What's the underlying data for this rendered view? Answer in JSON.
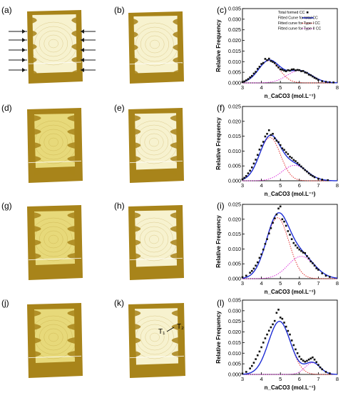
{
  "figure": {
    "panel_labels": [
      "(a)",
      "(b)",
      "(c)",
      "(d)",
      "(e)",
      "(f)",
      "(g)",
      "(h)",
      "(i)",
      "(j)",
      "(k)",
      "(l)"
    ],
    "annotations": {
      "t1": "T₁",
      "t2": "T₂"
    },
    "colors": {
      "sample_base": "#e7d97a",
      "sample_dark": "#a8841a",
      "sample_inner": "#f7f2cf",
      "arrow": "#1a1a1a",
      "points": "#111111",
      "fit_total": "#1f2fd6",
      "fit_type1": "#e02020",
      "fit_type2": "#d81fd8"
    }
  },
  "chart_data": [
    {
      "type": "scatter",
      "panel": "(c)",
      "xlabel": "n_CaCO3 (mol.L⁻¹)",
      "ylabel": "Relative Frequency",
      "xlim": [
        3,
        8
      ],
      "ylim": [
        0,
        0.035
      ],
      "xticks": [
        "3",
        "4",
        "5",
        "6",
        "7",
        "8"
      ],
      "yticks": [
        "0.000",
        "0.005",
        "0.010",
        "0.015",
        "0.020",
        "0.025",
        "0.030",
        "0.035"
      ],
      "legend": {
        "position": "top-right",
        "entries": [
          "Total formed CC",
          "Fitted Curve for total CC",
          "Fitted curve for Type I CC",
          "Fitted curve for Type II CC"
        ]
      },
      "curves": {
        "type1": {
          "amp": 0.0105,
          "mu": 4.4,
          "sigma": 0.55
        },
        "type2": {
          "amp": 0.0058,
          "mu": 6.0,
          "sigma": 0.65
        }
      },
      "points": [
        [
          3.0,
          0.0004
        ],
        [
          3.1,
          0.0007
        ],
        [
          3.2,
          0.0012
        ],
        [
          3.3,
          0.0018
        ],
        [
          3.4,
          0.0026
        ],
        [
          3.5,
          0.0033
        ],
        [
          3.6,
          0.0044
        ],
        [
          3.7,
          0.0052
        ],
        [
          3.8,
          0.0066
        ],
        [
          3.9,
          0.0076
        ],
        [
          4.0,
          0.0089
        ],
        [
          4.1,
          0.0094
        ],
        [
          4.2,
          0.0113
        ],
        [
          4.3,
          0.0107
        ],
        [
          4.4,
          0.0114
        ],
        [
          4.5,
          0.0103
        ],
        [
          4.6,
          0.0099
        ],
        [
          4.7,
          0.0093
        ],
        [
          4.8,
          0.0082
        ],
        [
          4.9,
          0.0073
        ],
        [
          5.0,
          0.0064
        ],
        [
          5.1,
          0.0062
        ],
        [
          5.2,
          0.0058
        ],
        [
          5.3,
          0.0055
        ],
        [
          5.4,
          0.006
        ],
        [
          5.5,
          0.0058
        ],
        [
          5.6,
          0.0063
        ],
        [
          5.7,
          0.0064
        ],
        [
          5.8,
          0.0059
        ],
        [
          5.9,
          0.0061
        ],
        [
          6.0,
          0.006
        ],
        [
          6.1,
          0.0055
        ],
        [
          6.2,
          0.0056
        ],
        [
          6.3,
          0.0049
        ],
        [
          6.4,
          0.0047
        ],
        [
          6.5,
          0.0039
        ],
        [
          6.6,
          0.0036
        ],
        [
          6.7,
          0.003
        ],
        [
          6.8,
          0.0024
        ],
        [
          6.9,
          0.002
        ],
        [
          7.0,
          0.0014
        ],
        [
          7.2,
          0.0008
        ],
        [
          7.4,
          0.0005
        ],
        [
          7.6,
          0.0003
        ],
        [
          7.8,
          0.0002
        ]
      ]
    },
    {
      "type": "scatter",
      "panel": "(f)",
      "xlabel": "n_CaCO3 (mol.L⁻¹)",
      "ylabel": "Relative Frequency",
      "xlim": [
        3,
        8
      ],
      "ylim": [
        0,
        0.025
      ],
      "xticks": [
        "3",
        "4",
        "5",
        "6",
        "7",
        "8"
      ],
      "yticks": [
        "0.000",
        "0.005",
        "0.010",
        "0.015",
        "0.020",
        "0.025"
      ],
      "curves": {
        "type1": {
          "amp": 0.0146,
          "mu": 4.45,
          "sigma": 0.55
        },
        "type2": {
          "amp": 0.0052,
          "mu": 5.75,
          "sigma": 0.65
        }
      },
      "points": [
        [
          3.0,
          0.0005
        ],
        [
          3.1,
          0.001
        ],
        [
          3.2,
          0.0016
        ],
        [
          3.3,
          0.0025
        ],
        [
          3.4,
          0.0034
        ],
        [
          3.5,
          0.0045
        ],
        [
          3.6,
          0.0058
        ],
        [
          3.7,
          0.0071
        ],
        [
          3.8,
          0.0087
        ],
        [
          3.9,
          0.0105
        ],
        [
          4.0,
          0.0118
        ],
        [
          4.1,
          0.0131
        ],
        [
          4.2,
          0.0149
        ],
        [
          4.3,
          0.0158
        ],
        [
          4.4,
          0.017
        ],
        [
          4.5,
          0.0154
        ],
        [
          4.6,
          0.0158
        ],
        [
          4.7,
          0.0143
        ],
        [
          4.8,
          0.0135
        ],
        [
          4.9,
          0.013
        ],
        [
          5.0,
          0.012
        ],
        [
          5.1,
          0.0109
        ],
        [
          5.2,
          0.0104
        ],
        [
          5.3,
          0.0096
        ],
        [
          5.4,
          0.009
        ],
        [
          5.5,
          0.0081
        ],
        [
          5.6,
          0.0077
        ],
        [
          5.7,
          0.007
        ],
        [
          5.8,
          0.0066
        ],
        [
          5.9,
          0.006
        ],
        [
          6.0,
          0.0054
        ],
        [
          6.1,
          0.0048
        ],
        [
          6.2,
          0.0042
        ],
        [
          6.3,
          0.0036
        ],
        [
          6.4,
          0.0031
        ],
        [
          6.5,
          0.0025
        ],
        [
          6.6,
          0.002
        ],
        [
          6.7,
          0.0016
        ],
        [
          6.8,
          0.0012
        ],
        [
          7.0,
          0.0007
        ],
        [
          7.2,
          0.0004
        ],
        [
          7.5,
          0.0002
        ]
      ]
    },
    {
      "type": "scatter",
      "panel": "(i)",
      "xlabel": "n_CaCO3 (mol.L⁻¹)",
      "ylabel": "Relative Frequency",
      "xlim": [
        3,
        8
      ],
      "ylim": [
        0,
        0.025
      ],
      "xticks": [
        "3",
        "4",
        "5",
        "6",
        "7",
        "8"
      ],
      "yticks": [
        "0.000",
        "0.005",
        "0.010",
        "0.015",
        "0.020",
        "0.025"
      ],
      "curves": {
        "type1": {
          "amp": 0.0205,
          "mu": 4.85,
          "sigma": 0.6
        },
        "type2": {
          "amp": 0.0075,
          "mu": 6.1,
          "sigma": 0.7
        }
      },
      "points": [
        [
          3.0,
          0.0005
        ],
        [
          3.2,
          0.001
        ],
        [
          3.4,
          0.002
        ],
        [
          3.5,
          0.0026
        ],
        [
          3.6,
          0.0034
        ],
        [
          3.7,
          0.0044
        ],
        [
          3.8,
          0.0055
        ],
        [
          3.9,
          0.007
        ],
        [
          4.0,
          0.0082
        ],
        [
          4.1,
          0.0098
        ],
        [
          4.2,
          0.0117
        ],
        [
          4.3,
          0.0133
        ],
        [
          4.4,
          0.0152
        ],
        [
          4.5,
          0.017
        ],
        [
          4.6,
          0.0188
        ],
        [
          4.7,
          0.0203
        ],
        [
          4.8,
          0.0216
        ],
        [
          4.9,
          0.0236
        ],
        [
          5.0,
          0.0243
        ],
        [
          5.1,
          0.02
        ],
        [
          5.2,
          0.0192
        ],
        [
          5.3,
          0.0178
        ],
        [
          5.4,
          0.016
        ],
        [
          5.5,
          0.0148
        ],
        [
          5.6,
          0.0133
        ],
        [
          5.7,
          0.012
        ],
        [
          5.8,
          0.0112
        ],
        [
          5.9,
          0.0104
        ],
        [
          6.0,
          0.0098
        ],
        [
          6.1,
          0.0093
        ],
        [
          6.2,
          0.0088
        ],
        [
          6.3,
          0.0086
        ],
        [
          6.4,
          0.0076
        ],
        [
          6.5,
          0.0068
        ],
        [
          6.6,
          0.0058
        ],
        [
          6.7,
          0.0052
        ],
        [
          6.8,
          0.0044
        ],
        [
          6.9,
          0.0035
        ],
        [
          7.0,
          0.003
        ],
        [
          7.2,
          0.0018
        ],
        [
          7.4,
          0.001
        ],
        [
          7.6,
          0.0006
        ]
      ]
    },
    {
      "type": "scatter",
      "panel": "(l)",
      "xlabel": "n_CaCO3 (mol.L⁻¹)",
      "ylabel": "Relative Frequency",
      "xlim": [
        3,
        8
      ],
      "ylim": [
        0,
        0.035
      ],
      "xticks": [
        "3",
        "4",
        "5",
        "6",
        "7",
        "8"
      ],
      "yticks": [
        "0.000",
        "0.005",
        "0.010",
        "0.015",
        "0.020",
        "0.025",
        "0.030",
        "0.035"
      ],
      "curves": {
        "type1": {
          "amp": 0.025,
          "mu": 4.95,
          "sigma": 0.58
        },
        "type2": {
          "amp": 0.0055,
          "mu": 6.7,
          "sigma": 0.4
        }
      },
      "points": [
        [
          3.0,
          0.0004
        ],
        [
          3.2,
          0.0012
        ],
        [
          3.4,
          0.0028
        ],
        [
          3.5,
          0.004
        ],
        [
          3.6,
          0.0055
        ],
        [
          3.7,
          0.0072
        ],
        [
          3.8,
          0.009
        ],
        [
          3.9,
          0.0108
        ],
        [
          4.0,
          0.0128
        ],
        [
          4.1,
          0.015
        ],
        [
          4.2,
          0.017
        ],
        [
          4.3,
          0.0188
        ],
        [
          4.4,
          0.0206
        ],
        [
          4.5,
          0.0222
        ],
        [
          4.6,
          0.0236
        ],
        [
          4.7,
          0.0252
        ],
        [
          4.8,
          0.029
        ],
        [
          4.9,
          0.0305
        ],
        [
          5.0,
          0.0268
        ],
        [
          5.1,
          0.0262
        ],
        [
          5.2,
          0.0244
        ],
        [
          5.3,
          0.0225
        ],
        [
          5.4,
          0.0205
        ],
        [
          5.5,
          0.0188
        ],
        [
          5.6,
          0.016
        ],
        [
          5.7,
          0.0138
        ],
        [
          5.8,
          0.0118
        ],
        [
          5.9,
          0.01
        ],
        [
          6.0,
          0.0084
        ],
        [
          6.1,
          0.0072
        ],
        [
          6.2,
          0.0065
        ],
        [
          6.3,
          0.006
        ],
        [
          6.4,
          0.0064
        ],
        [
          6.5,
          0.007
        ],
        [
          6.6,
          0.0075
        ],
        [
          6.7,
          0.008
        ],
        [
          6.8,
          0.007
        ],
        [
          6.9,
          0.0058
        ],
        [
          7.0,
          0.0045
        ],
        [
          7.1,
          0.0033
        ],
        [
          7.2,
          0.0024
        ],
        [
          7.4,
          0.0012
        ],
        [
          7.6,
          0.0005
        ]
      ]
    }
  ]
}
